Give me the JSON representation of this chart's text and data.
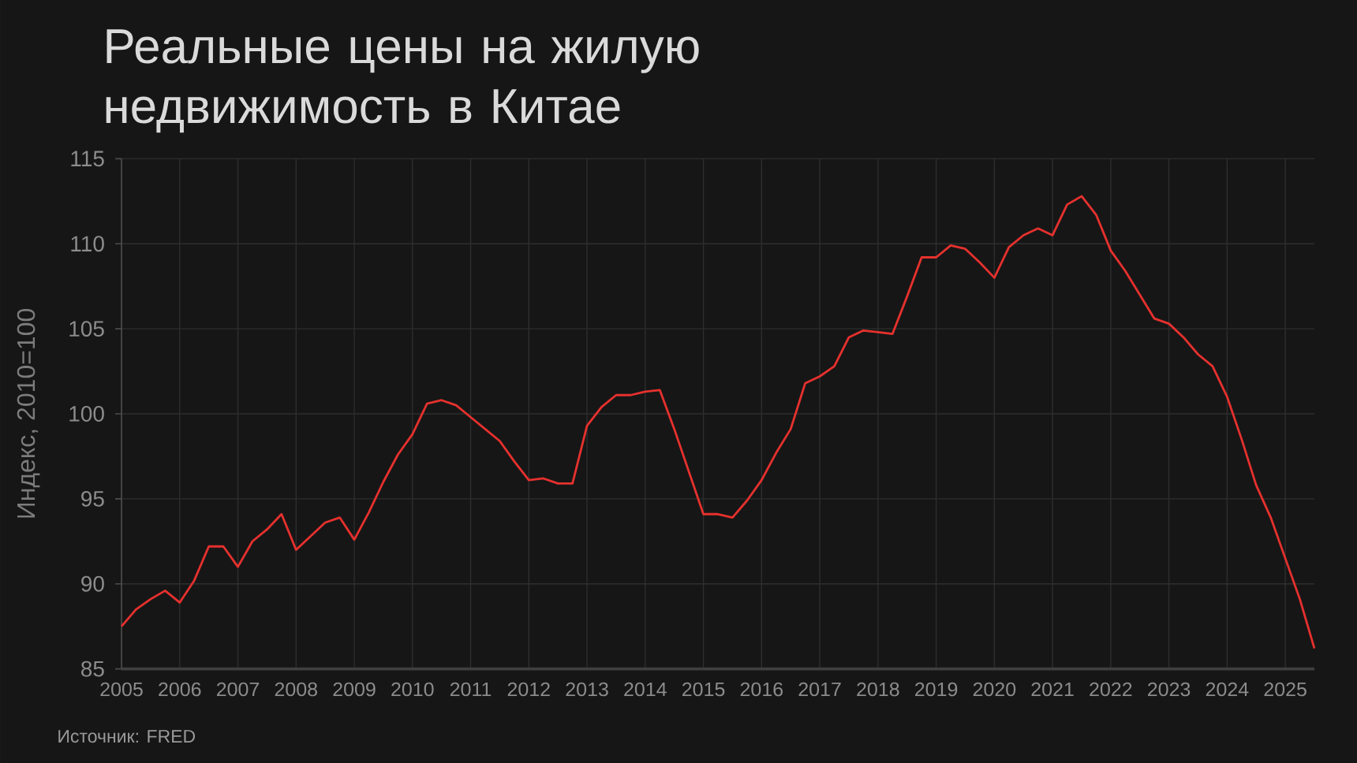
{
  "chart_data": {
    "type": "line",
    "title": "Реальные цены на жилую недвижимость в Китае",
    "ylabel": "Индекс, 2010=100",
    "annotations": [
      "Источник: FRED"
    ],
    "x": [
      2005,
      2005.25,
      2005.5,
      2005.75,
      2006,
      2006.25,
      2006.5,
      2006.75,
      2007,
      2007.25,
      2007.5,
      2007.75,
      2008,
      2008.25,
      2008.5,
      2008.75,
      2009,
      2009.25,
      2009.5,
      2009.75,
      2010,
      2010.25,
      2010.5,
      2010.75,
      2011,
      2011.25,
      2011.5,
      2011.75,
      2012,
      2012.25,
      2012.5,
      2012.75,
      2013,
      2013.25,
      2013.5,
      2013.75,
      2014,
      2014.25,
      2014.5,
      2014.75,
      2015,
      2015.25,
      2015.5,
      2015.75,
      2016,
      2016.25,
      2016.5,
      2016.75,
      2017,
      2017.25,
      2017.5,
      2017.75,
      2018,
      2018.25,
      2018.5,
      2018.75,
      2019,
      2019.25,
      2019.5,
      2019.75,
      2020,
      2020.25,
      2020.5,
      2020.75,
      2021,
      2021.25,
      2021.5,
      2021.75,
      2022,
      2022.25,
      2022.5,
      2022.75,
      2023,
      2023.25,
      2023.5,
      2023.75,
      2024,
      2024.25,
      2024.5,
      2024.75,
      2025,
      2025.25,
      2025.5
    ],
    "series": [
      {
        "color": "#e5312e",
        "values": [
          87.5,
          88.5,
          89.1,
          89.6,
          88.9,
          90.2,
          92.2,
          92.2,
          91,
          92.5,
          93.2,
          94.1,
          92,
          92.8,
          93.6,
          93.9,
          92.6,
          94.2,
          96,
          97.6,
          98.8,
          100.6,
          100.8,
          100.5,
          99.8,
          99.1,
          98.4,
          97.2,
          96.1,
          96.2,
          95.9,
          95.9,
          99.3,
          100.4,
          101.1,
          101.1,
          101.3,
          101.4,
          99.1,
          96.6,
          94.1,
          94.1,
          93.9,
          94.9,
          96.1,
          97.7,
          99.1,
          101.8,
          102.2,
          102.8,
          104.5,
          104.9,
          104.8,
          104.7,
          106.9,
          109.2,
          109.2,
          109.9,
          109.7,
          108.9,
          108,
          109.8,
          110.5,
          110.9,
          110.5,
          112.3,
          112.8,
          111.7,
          109.6,
          108.4,
          107,
          105.6,
          105.3,
          104.5,
          103.5,
          102.8,
          101,
          98.5,
          95.8,
          93.9,
          91.5,
          89.1,
          86.2
        ]
      }
    ],
    "xlim": [
      2005,
      2025.5
    ],
    "ylim": [
      85,
      115
    ],
    "xticks": [
      2005,
      2006,
      2007,
      2008,
      2009,
      2010,
      2011,
      2012,
      2013,
      2014,
      2015,
      2016,
      2017,
      2018,
      2019,
      2020,
      2021,
      2022,
      2023,
      2024,
      2025
    ],
    "yticks": [
      85,
      90,
      95,
      100,
      105,
      110,
      115
    ],
    "grid": true
  }
}
